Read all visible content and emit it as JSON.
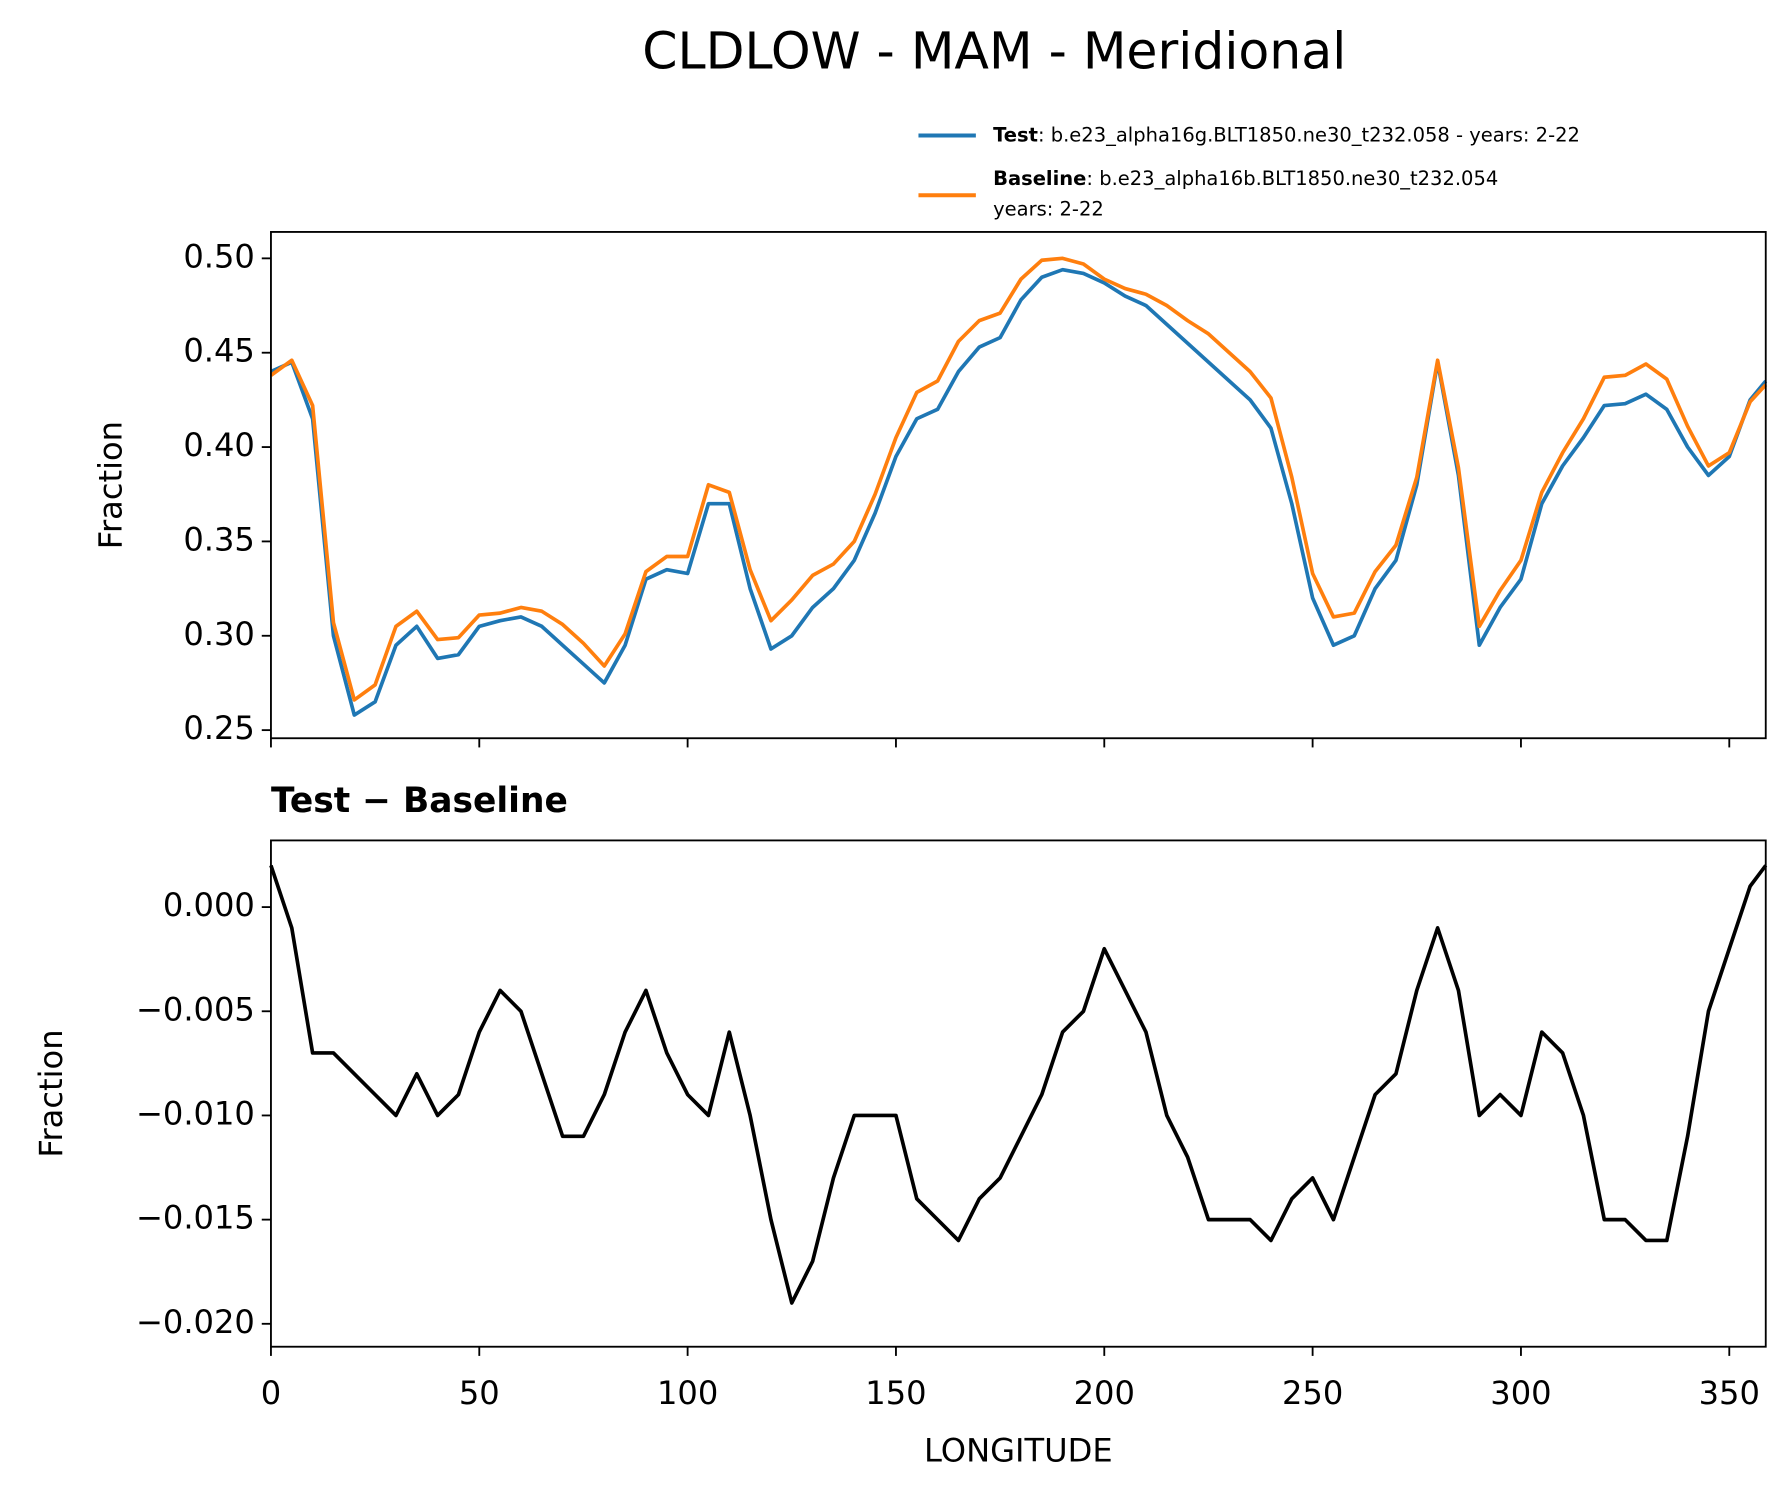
{
  "chart_data": [
    {
      "type": "line",
      "title": "CLDLOW - MAM - Meridional",
      "ylabel": "Fraction",
      "x": [
        0,
        5,
        10,
        15,
        20,
        25,
        30,
        35,
        40,
        45,
        50,
        55,
        60,
        65,
        70,
        75,
        80,
        85,
        90,
        95,
        100,
        105,
        110,
        115,
        120,
        125,
        130,
        135,
        140,
        145,
        150,
        155,
        160,
        165,
        170,
        175,
        180,
        185,
        190,
        195,
        200,
        205,
        210,
        215,
        220,
        225,
        230,
        235,
        240,
        245,
        250,
        255,
        260,
        265,
        270,
        275,
        280,
        285,
        290,
        295,
        300,
        305,
        310,
        315,
        320,
        325,
        330,
        335,
        340,
        345,
        350,
        355,
        358.75
      ],
      "series": [
        {
          "name": "Test",
          "label_text": [
            ": b.e23_alpha16g.BLT1850.ne30_t232.058 - years: 2-22"
          ],
          "color": "#1f77b4",
          "values": [
            0.44,
            0.445,
            0.415,
            0.3,
            0.258,
            0.265,
            0.295,
            0.305,
            0.288,
            0.29,
            0.305,
            0.308,
            0.31,
            0.305,
            0.295,
            0.285,
            0.275,
            0.295,
            0.33,
            0.335,
            0.333,
            0.37,
            0.37,
            0.325,
            0.293,
            0.3,
            0.315,
            0.325,
            0.34,
            0.365,
            0.395,
            0.415,
            0.42,
            0.44,
            0.453,
            0.458,
            0.478,
            0.49,
            0.494,
            0.492,
            0.487,
            0.48,
            0.475,
            0.465,
            0.455,
            0.445,
            0.435,
            0.425,
            0.41,
            0.37,
            0.32,
            0.295,
            0.3,
            0.325,
            0.34,
            0.38,
            0.445,
            0.385,
            0.295,
            0.315,
            0.33,
            0.37,
            0.39,
            0.405,
            0.422,
            0.423,
            0.428,
            0.42,
            0.4,
            0.385,
            0.395,
            0.425,
            0.435
          ]
        },
        {
          "name": "Baseline",
          "label_text": [
            ": b.e23_alpha16b.BLT1850.ne30_t232.054",
            "years: 2-22"
          ],
          "color": "#ff7f0e",
          "values": [
            0.438,
            0.446,
            0.422,
            0.307,
            0.266,
            0.274,
            0.305,
            0.313,
            0.298,
            0.299,
            0.311,
            0.312,
            0.315,
            0.313,
            0.306,
            0.296,
            0.284,
            0.301,
            0.334,
            0.342,
            0.342,
            0.38,
            0.376,
            0.335,
            0.308,
            0.319,
            0.332,
            0.338,
            0.35,
            0.375,
            0.405,
            0.429,
            0.435,
            0.456,
            0.467,
            0.471,
            0.489,
            0.499,
            0.5,
            0.497,
            0.489,
            0.484,
            0.481,
            0.475,
            0.467,
            0.46,
            0.45,
            0.44,
            0.426,
            0.384,
            0.333,
            0.31,
            0.312,
            0.334,
            0.348,
            0.384,
            0.446,
            0.389,
            0.305,
            0.324,
            0.34,
            0.376,
            0.397,
            0.415,
            0.437,
            0.438,
            0.444,
            0.436,
            0.411,
            0.39,
            0.397,
            0.424,
            0.433
          ]
        }
      ],
      "xlim": [
        0,
        358.75
      ],
      "xticks": [
        0,
        50,
        100,
        150,
        200,
        250,
        300,
        350
      ],
      "ylim": [
        0.2457,
        0.514
      ],
      "yticks": [
        0.25,
        {
          "value": 0.3,
          "label": "0.30"
        },
        0.35,
        {
          "value": 0.4,
          "label": "0.40"
        },
        0.45,
        {
          "value": 0.5,
          "label": "0.50"
        }
      ]
    },
    {
      "type": "line",
      "title": "Test − Baseline",
      "ylabel": "Fraction",
      "xlabel": "LONGITUDE",
      "x": [
        0,
        5,
        10,
        15,
        20,
        25,
        30,
        35,
        40,
        45,
        50,
        55,
        60,
        65,
        70,
        75,
        80,
        85,
        90,
        95,
        100,
        105,
        110,
        115,
        120,
        125,
        130,
        135,
        140,
        145,
        150,
        155,
        160,
        165,
        170,
        175,
        180,
        185,
        190,
        195,
        200,
        205,
        210,
        215,
        220,
        225,
        230,
        235,
        240,
        245,
        250,
        255,
        260,
        265,
        270,
        275,
        280,
        285,
        290,
        295,
        300,
        305,
        310,
        315,
        320,
        325,
        330,
        335,
        340,
        345,
        350,
        355,
        358.75
      ],
      "series": [
        {
          "color": "#000000",
          "values": [
            0.002,
            -0.001,
            -0.007,
            -0.007,
            -0.008,
            -0.009,
            -0.01,
            -0.008,
            -0.01,
            -0.009,
            -0.006,
            -0.004,
            -0.005,
            -0.008,
            -0.011,
            -0.011,
            -0.009,
            -0.006,
            -0.004,
            -0.007,
            -0.009,
            -0.01,
            -0.006,
            -0.01,
            -0.015,
            -0.019,
            -0.017,
            -0.013,
            -0.01,
            -0.01,
            -0.01,
            -0.014,
            -0.015,
            -0.016,
            -0.014,
            -0.013,
            -0.011,
            -0.009,
            -0.006,
            -0.005,
            -0.002,
            -0.004,
            -0.006,
            -0.01,
            -0.012,
            -0.015,
            -0.015,
            -0.015,
            -0.016,
            -0.014,
            -0.013,
            -0.015,
            -0.012,
            -0.009,
            -0.008,
            -0.004,
            -0.001,
            -0.004,
            -0.01,
            -0.009,
            -0.01,
            -0.006,
            -0.007,
            -0.01,
            -0.015,
            -0.015,
            -0.016,
            -0.016,
            -0.011,
            -0.005,
            -0.002,
            0.001,
            0.002
          ]
        }
      ],
      "xlim": [
        0,
        358.75
      ],
      "xticks": [
        0,
        50,
        100,
        150,
        200,
        250,
        300,
        350
      ],
      "ylim": [
        -0.0211,
        0.0032
      ],
      "yticks": [
        {
          "value": -0.02,
          "label": "−0.020"
        },
        {
          "value": -0.015,
          "label": "−0.015"
        },
        {
          "value": -0.01,
          "label": "−0.010"
        },
        {
          "value": -0.005,
          "label": "−0.005"
        },
        {
          "value": 0,
          "label": "0.000"
        }
      ]
    }
  ]
}
